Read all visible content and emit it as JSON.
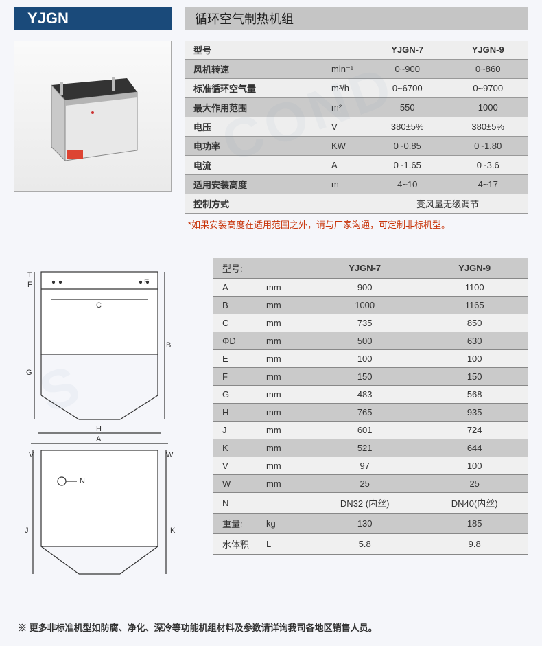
{
  "header": {
    "model_code": "YJGN",
    "product_name": "循环空气制热机组"
  },
  "spec_table": {
    "header": {
      "label": "型号",
      "col1": "YJGN-7",
      "col2": "YJGN-9"
    },
    "rows": [
      {
        "label": "风机转速",
        "unit": "min⁻¹",
        "v1": "0~900",
        "v2": "0~860",
        "band": true
      },
      {
        "label": "标准循环空气量",
        "unit": "m³/h",
        "v1": "0~6700",
        "v2": "0~9700",
        "band": false
      },
      {
        "label": "最大作用范围",
        "unit": "m²",
        "v1": "550",
        "v2": "1000",
        "band": true
      },
      {
        "label": "电压",
        "unit": "V",
        "v1": "380±5%",
        "v2": "380±5%",
        "band": false
      },
      {
        "label": "电功率",
        "unit": "KW",
        "v1": "0~0.85",
        "v2": "0~1.80",
        "band": true
      },
      {
        "label": "电流",
        "unit": "A",
        "v1": "0~1.65",
        "v2": "0~3.6",
        "band": false
      },
      {
        "label": "适用安装高度",
        "unit": "m",
        "v1": "4~10",
        "v2": "4~17",
        "band": true
      }
    ],
    "control_row": {
      "label": "控制方式",
      "value": "变风量无级调节"
    },
    "note": "*如果安装高度在适用范围之外，请与厂家沟通，可定制非标机型。"
  },
  "dim_table": {
    "header": {
      "label": "型号:",
      "col1": "YJGN-7",
      "col2": "YJGN-9"
    },
    "rows": [
      {
        "label": "A",
        "unit": "mm",
        "v1": "900",
        "v2": "1100",
        "band": false
      },
      {
        "label": "B",
        "unit": "mm",
        "v1": "1000",
        "v2": "1165",
        "band": true
      },
      {
        "label": "C",
        "unit": "mm",
        "v1": "735",
        "v2": "850",
        "band": false
      },
      {
        "label": "ΦD",
        "unit": "mm",
        "v1": "500",
        "v2": "630",
        "band": true
      },
      {
        "label": "E",
        "unit": "mm",
        "v1": "100",
        "v2": "100",
        "band": false
      },
      {
        "label": "F",
        "unit": "mm",
        "v1": "150",
        "v2": "150",
        "band": true
      },
      {
        "label": "G",
        "unit": "mm",
        "v1": "483",
        "v2": "568",
        "band": false
      },
      {
        "label": "H",
        "unit": "mm",
        "v1": "765",
        "v2": "935",
        "band": true
      },
      {
        "label": "J",
        "unit": "mm",
        "v1": "601",
        "v2": "724",
        "band": false
      },
      {
        "label": "K",
        "unit": "mm",
        "v1": "521",
        "v2": "644",
        "band": true
      },
      {
        "label": "V",
        "unit": "mm",
        "v1": "97",
        "v2": "100",
        "band": false
      },
      {
        "label": "W",
        "unit": "mm",
        "v1": "25",
        "v2": "25",
        "band": true
      },
      {
        "label": "N",
        "unit": "",
        "v1": "DN32 (内丝)",
        "v2": "DN40(内丝)",
        "band": false
      },
      {
        "label": "重量:",
        "unit": "kg",
        "v1": "130",
        "v2": "185",
        "band": true
      },
      {
        "label": "水体积",
        "unit": "L",
        "v1": "5.8",
        "v2": "9.8",
        "band": false
      }
    ]
  },
  "footer_note": "※ 更多非标准机型如防腐、净化、深冷等功能机组材料及参数请详询我司各地区销售人员。",
  "colors": {
    "title_bg": "#1a4a7a",
    "subtitle_bg": "#c5c5c5",
    "band_bg": "#cacaca",
    "light_bg": "#eeeeee",
    "note_color": "#c8340a"
  },
  "diagram_labels": [
    "T",
    "F",
    "E",
    "C",
    "B",
    "G",
    "H",
    "A",
    "V",
    "W",
    "N",
    "J",
    "K"
  ]
}
